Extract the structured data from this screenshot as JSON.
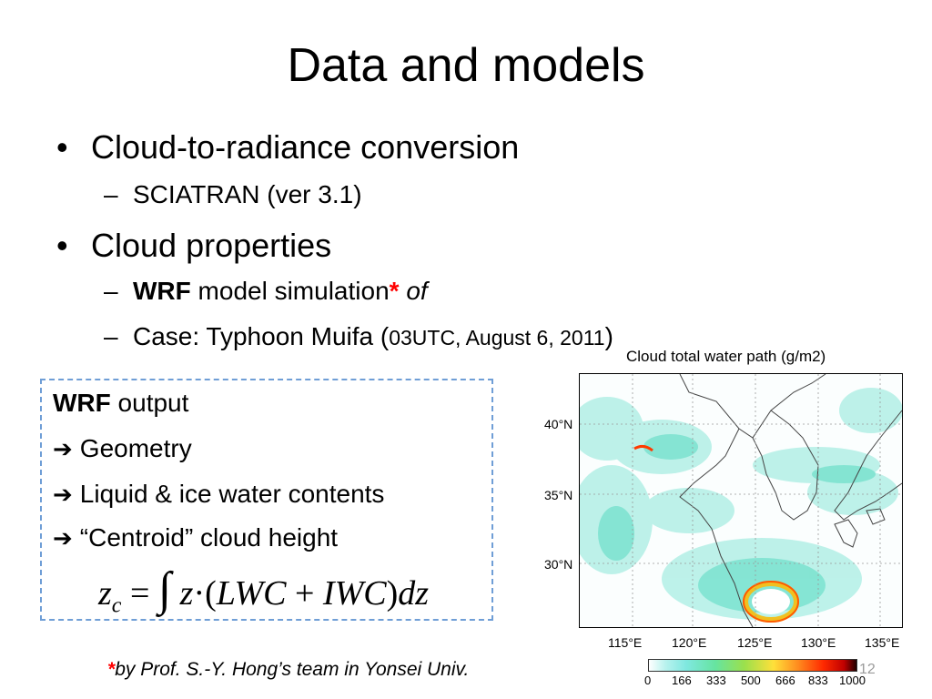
{
  "slide": {
    "title": "Data and models",
    "bullets": [
      {
        "text": "Cloud-to-radiance conversion",
        "sub": [
          "SCIATRAN (ver 3.1)"
        ]
      },
      {
        "text": "Cloud properties"
      }
    ],
    "sub_wrf": {
      "bold": "WRF",
      "text": " model simulation",
      "star": "*",
      "italic": " of"
    },
    "sub_case": {
      "prefix": "Case: Typhoon Muifa (",
      "date": "03UTC, August 6, 2011",
      "suffix": ")"
    },
    "bullet_char": "•",
    "dash_char": "–"
  },
  "wrf_box": {
    "heading_bold": "WRF",
    "heading_text": " output",
    "arrow": "➔",
    "items": [
      "Geometry",
      "Liquid & ice water contents",
      "“Centroid” cloud height"
    ],
    "formula": {
      "lhs_var": "z",
      "lhs_sub": "c",
      "eq": "=",
      "integral": "∫",
      "z": "z",
      "dot": "·",
      "open": "(",
      "lwc": "LWC",
      "plus": "+",
      "iwc": "IWC",
      "close": ")",
      "dz": "dz"
    }
  },
  "figure": {
    "title": "Cloud total water path (g/m2)",
    "lat_labels": [
      "40°N",
      "35°N",
      "30°N"
    ],
    "lon_labels": [
      "115°E",
      "120°E",
      "125°E",
      "130°E",
      "135°E"
    ],
    "colorbar_ticks": [
      "0",
      "166",
      "333",
      "500",
      "666",
      "833",
      "1000"
    ]
  },
  "footnote": {
    "star": "*",
    "text": "by Prof. S.-Y. Hong’s team in Yonsei Univ."
  },
  "page_number": "12"
}
